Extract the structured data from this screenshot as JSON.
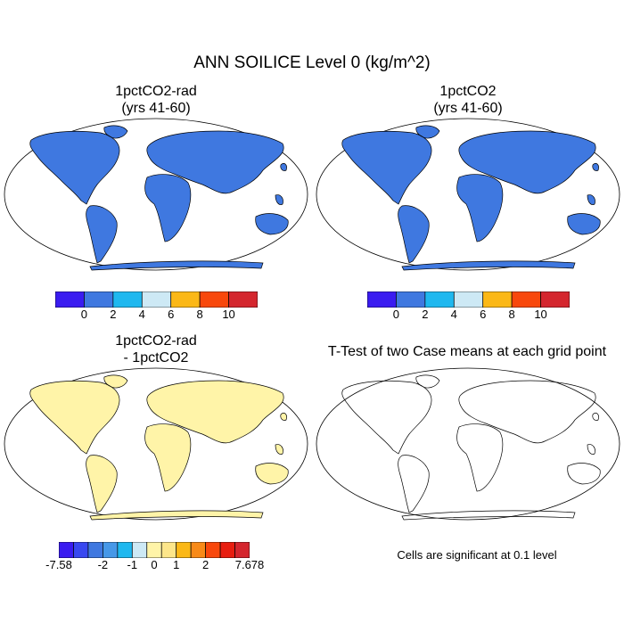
{
  "figure": {
    "title": "ANN SOILICE Level 0 (kg/m^2)",
    "panels": [
      {
        "title_line1": "1pctCO2-rad",
        "title_line2": "(yrs 41-60)"
      },
      {
        "title_line1": "1pctCO2",
        "title_line2": "(yrs 41-60)"
      },
      {
        "title_line1": "1pctCO2-rad",
        "title_line2": "- 1pctCO2"
      },
      {
        "title_line1": "T-Test of two Case means at each grid point",
        "title_line2": ""
      }
    ],
    "colorbar_top": {
      "colors": [
        "#3a1cf0",
        "#3f78e0",
        "#1fb8ef",
        "#cde9f5",
        "#fbb817",
        "#f8480c",
        "#d4262e"
      ],
      "tick_labels": [
        "0",
        "2",
        "4",
        "6",
        "8",
        "10"
      ]
    },
    "colorbar_diff": {
      "colors": [
        "#3a1cf0",
        "#3848f0",
        "#3f78e0",
        "#4698e8",
        "#1fb8ef",
        "#cde9f5",
        "#fff4a8",
        "#fde68a",
        "#fbb817",
        "#f88a18",
        "#f8480c",
        "#e81e10",
        "#d4262e"
      ],
      "tick_labels": [
        "-7.58",
        "-2",
        "-1",
        "0",
        "1",
        "2",
        "7.678"
      ]
    },
    "significance_note": "Cells are significant at 0.1 level"
  }
}
